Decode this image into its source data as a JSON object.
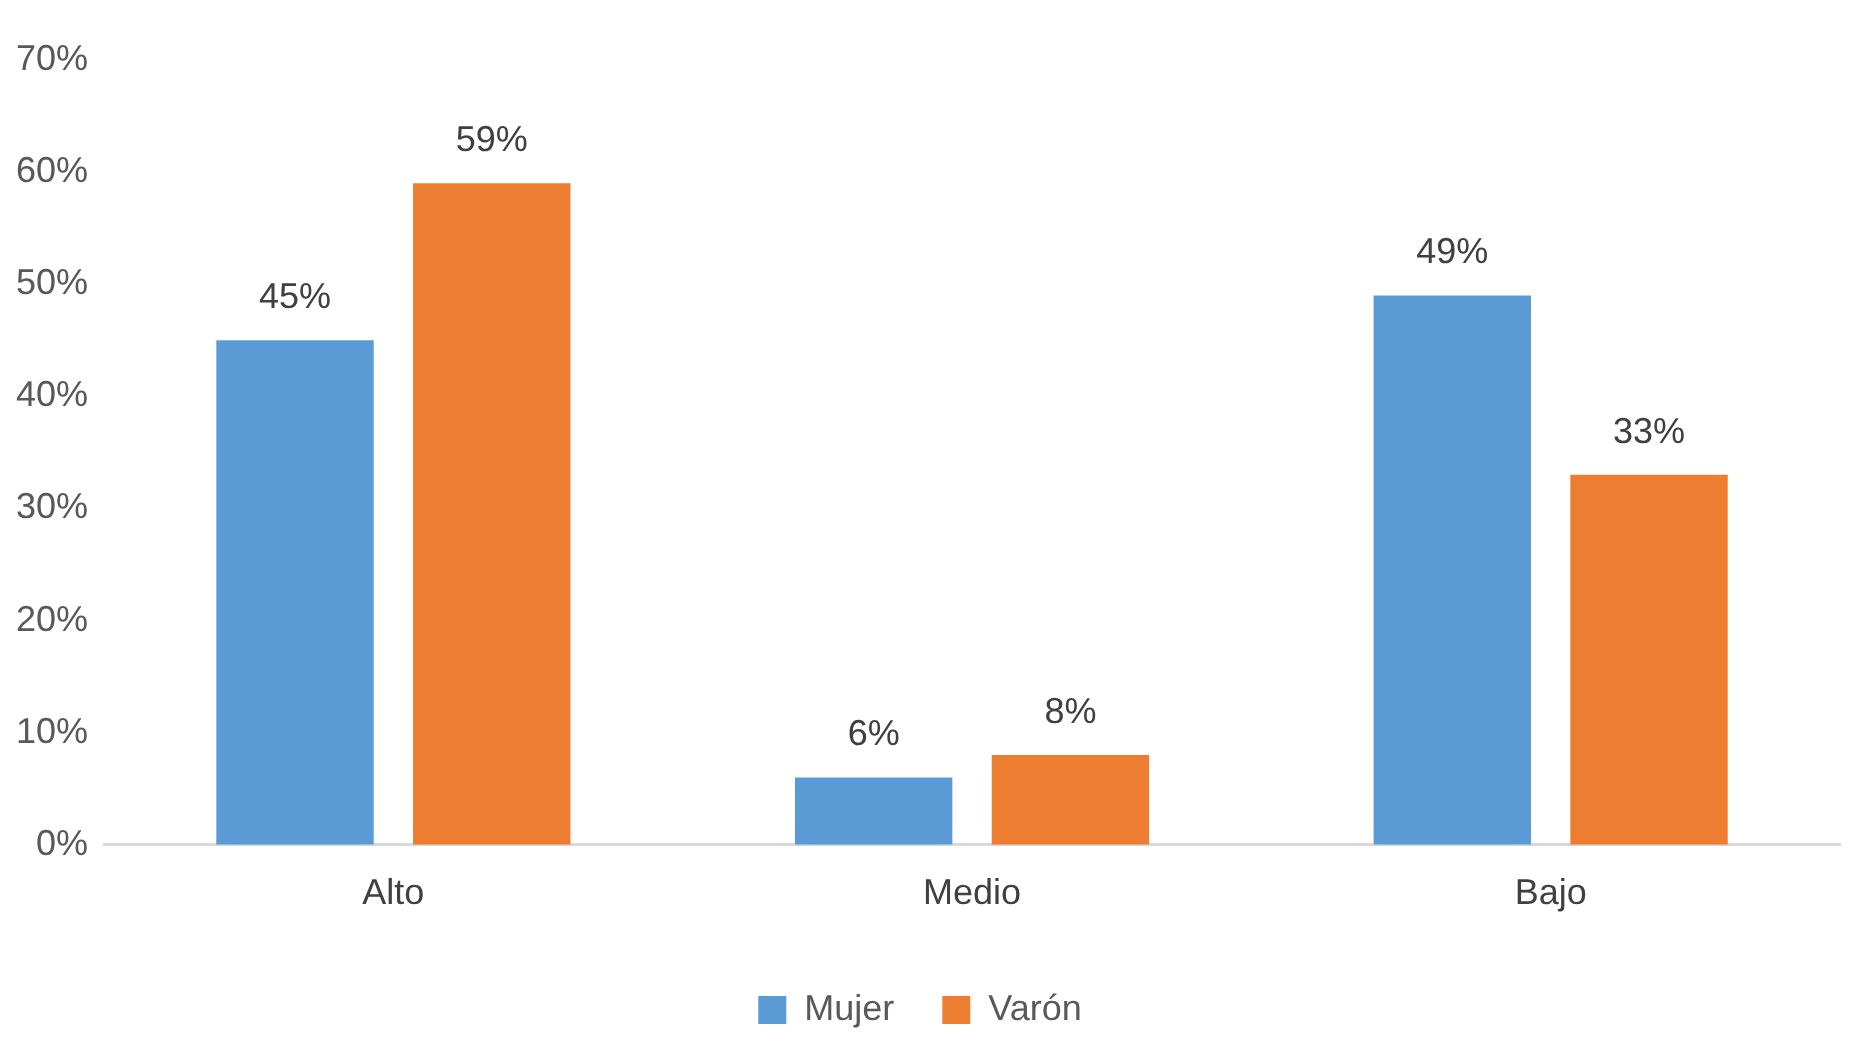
{
  "chart_data": {
    "type": "bar",
    "categories": [
      "Alto",
      "Medio",
      "Bajo"
    ],
    "series": [
      {
        "name": "Mujer",
        "color": "#5b9bd5",
        "values": [
          45,
          6,
          49
        ],
        "value_labels": [
          "45%",
          "6%",
          "49%"
        ]
      },
      {
        "name": "Varón",
        "color": "#ed7d31",
        "values": [
          59,
          8,
          33
        ],
        "value_labels": [
          "59%",
          "8%",
          "33%"
        ]
      }
    ],
    "ylim": [
      0,
      70
    ],
    "yticks": [
      {
        "value": 0,
        "label": "0%"
      },
      {
        "value": 10,
        "label": "10%"
      },
      {
        "value": 20,
        "label": "20%"
      },
      {
        "value": 30,
        "label": "30%"
      },
      {
        "value": 40,
        "label": "40%"
      },
      {
        "value": 50,
        "label": "50%"
      },
      {
        "value": 60,
        "label": "60%"
      },
      {
        "value": 70,
        "label": "70%"
      }
    ],
    "grid": false,
    "legend": "bottom"
  }
}
